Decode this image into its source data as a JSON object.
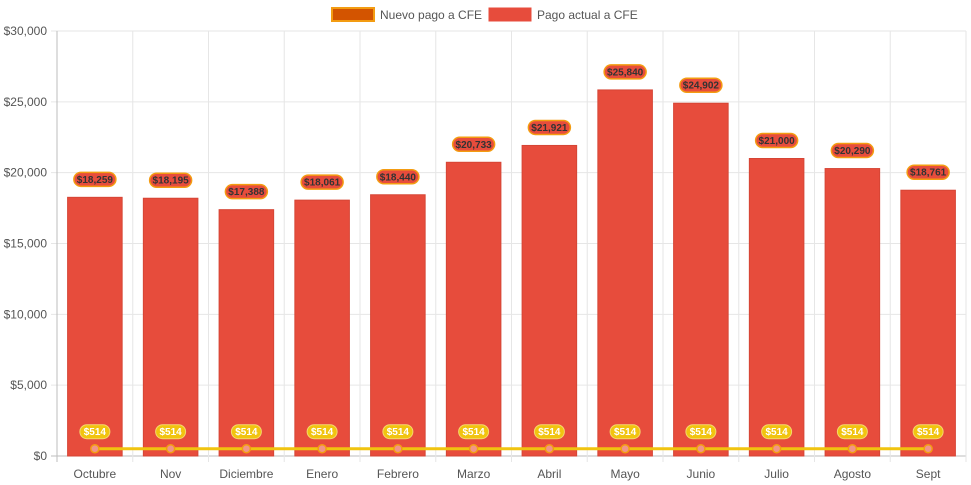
{
  "chart_data": {
    "type": "bar",
    "categories": [
      "Octubre",
      "Nov",
      "Diciembre",
      "Enero",
      "Febrero",
      "Marzo",
      "Abril",
      "Mayo",
      "Junio",
      "Julio",
      "Agosto",
      "Sept"
    ],
    "series": [
      {
        "name": "Pago actual a CFE",
        "type": "bar",
        "values": [
          18259,
          18195,
          17388,
          18061,
          18440,
          20733,
          21921,
          25840,
          24902,
          21000,
          20290,
          18761
        ],
        "labels": [
          "$18,259",
          "$18,195",
          "$17,388",
          "$18,061",
          "$18,440",
          "$20,733",
          "$21,921",
          "$25,840",
          "$24,902",
          "$21,000",
          "$20,290",
          "$18,761"
        ],
        "color": "#e74c3c"
      },
      {
        "name": "Nuevo pago a CFE",
        "type": "line",
        "values": [
          514,
          514,
          514,
          514,
          514,
          514,
          514,
          514,
          514,
          514,
          514,
          514
        ],
        "labels": [
          "$514",
          "$514",
          "$514",
          "$514",
          "$514",
          "$514",
          "$514",
          "$514",
          "$514",
          "$514",
          "$514",
          "$514"
        ],
        "color": "#f1c40f",
        "border_color": "#e67e22"
      }
    ],
    "y_ticks": [
      "$0",
      "$5,000",
      "$10,000",
      "$15,000",
      "$20,000",
      "$25,000",
      "$30,000"
    ],
    "y_tick_values": [
      0,
      5000,
      10000,
      15000,
      20000,
      25000,
      30000
    ],
    "ylim": [
      0,
      30000
    ],
    "legend": [
      {
        "label": "Nuevo pago a CFE",
        "swatch_fill": "#d35400",
        "swatch_border": "#f39c12"
      },
      {
        "label": "Pago actual a CFE",
        "swatch_fill": "#e74c3c",
        "swatch_border": "#e74c3c"
      }
    ],
    "legend_position": "top-center",
    "grid": true
  }
}
